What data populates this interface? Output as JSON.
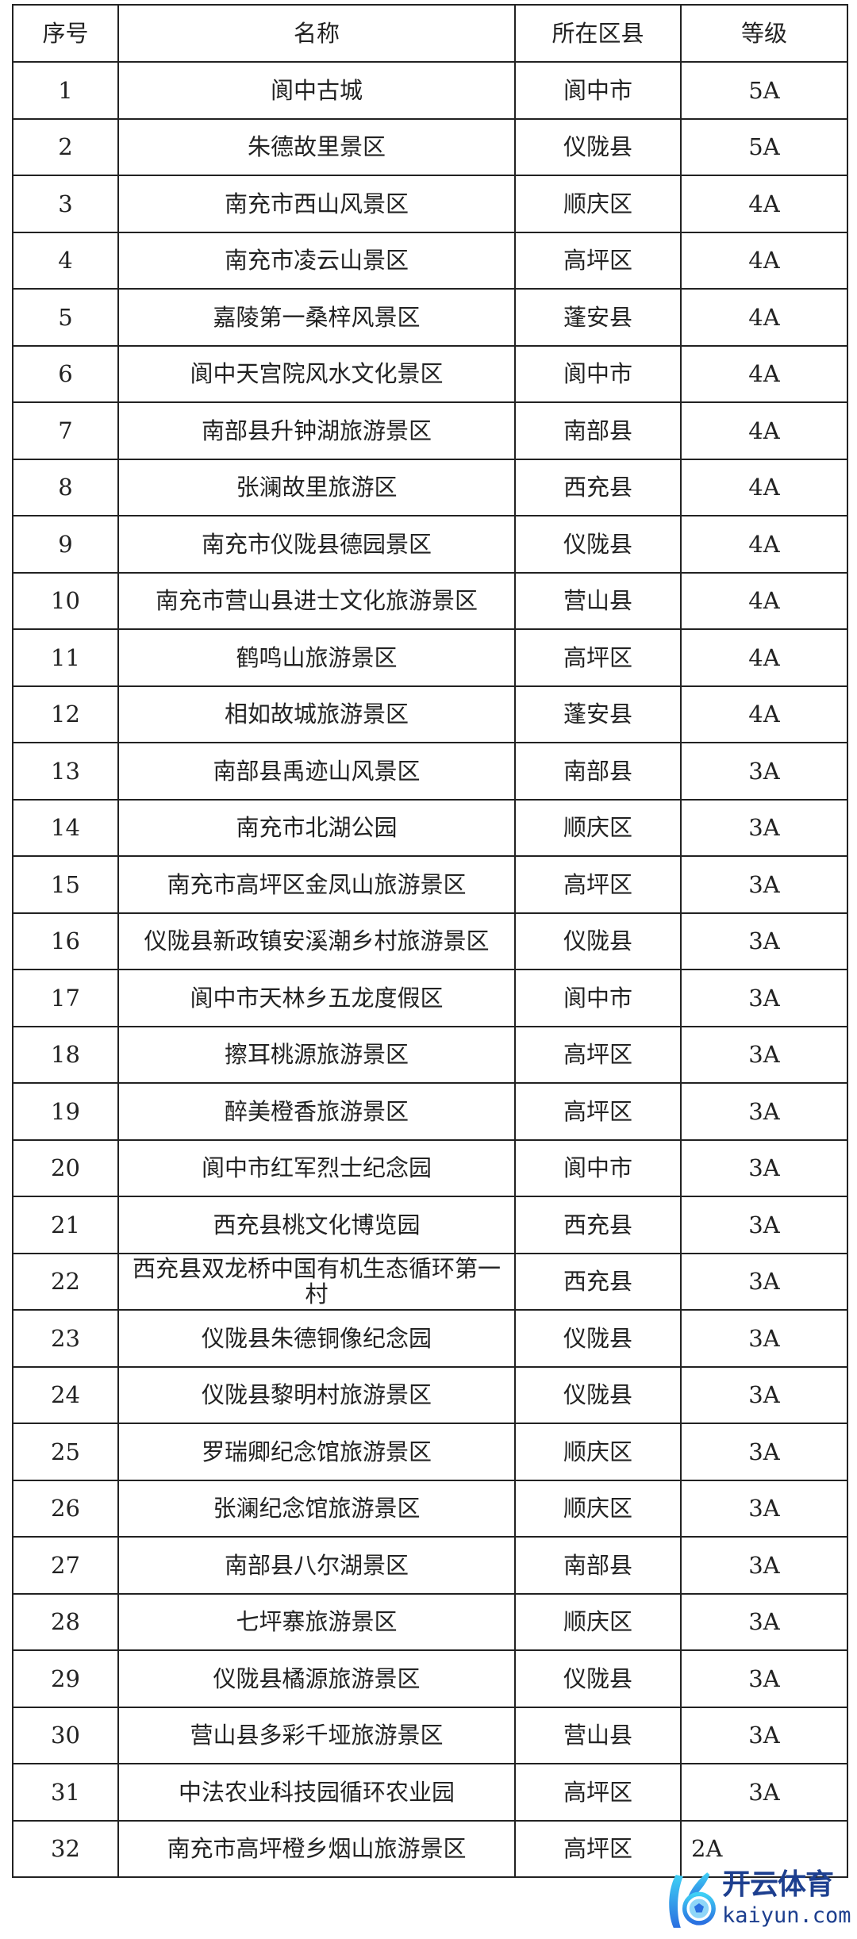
{
  "table": {
    "headers": [
      "序号",
      "名称",
      "所在区县",
      "等级"
    ],
    "rows": [
      [
        "1",
        "阆中古城",
        "阆中市",
        "5A"
      ],
      [
        "2",
        "朱德故里景区",
        "仪陇县",
        "5A"
      ],
      [
        "3",
        "南充市西山风景区",
        "顺庆区",
        "4A"
      ],
      [
        "4",
        "南充市凌云山景区",
        "高坪区",
        "4A"
      ],
      [
        "5",
        "嘉陵第一桑梓风景区",
        "蓬安县",
        "4A"
      ],
      [
        "6",
        "阆中天宫院风水文化景区",
        "阆中市",
        "4A"
      ],
      [
        "7",
        "南部县升钟湖旅游景区",
        "南部县",
        "4A"
      ],
      [
        "8",
        "张澜故里旅游区",
        "西充县",
        "4A"
      ],
      [
        "9",
        "南充市仪陇县德园景区",
        "仪陇县",
        "4A"
      ],
      [
        "10",
        "南充市营山县进士文化旅游景区",
        "营山县",
        "4A"
      ],
      [
        "11",
        "鹤鸣山旅游景区",
        "高坪区",
        "4A"
      ],
      [
        "12",
        "相如故城旅游景区",
        "蓬安县",
        "4A"
      ],
      [
        "13",
        "南部县禹迹山风景区",
        "南部县",
        "3A"
      ],
      [
        "14",
        "南充市北湖公园",
        "顺庆区",
        "3A"
      ],
      [
        "15",
        "南充市高坪区金凤山旅游景区",
        "高坪区",
        "3A"
      ],
      [
        "16",
        "仪陇县新政镇安溪潮乡村旅游景区",
        "仪陇县",
        "3A"
      ],
      [
        "17",
        "阆中市天林乡五龙度假区",
        "阆中市",
        "3A"
      ],
      [
        "18",
        "擦耳桃源旅游景区",
        "高坪区",
        "3A"
      ],
      [
        "19",
        "醉美橙香旅游景区",
        "高坪区",
        "3A"
      ],
      [
        "20",
        "阆中市红军烈士纪念园",
        "阆中市",
        "3A"
      ],
      [
        "21",
        "西充县桃文化博览园",
        "西充县",
        "3A"
      ],
      [
        "22",
        "西充县双龙桥中国有机生态循环第一村",
        "西充县",
        "3A"
      ],
      [
        "23",
        "仪陇县朱德铜像纪念园",
        "仪陇县",
        "3A"
      ],
      [
        "24",
        "仪陇县黎明村旅游景区",
        "仪陇县",
        "3A"
      ],
      [
        "25",
        "罗瑞卿纪念馆旅游景区",
        "顺庆区",
        "3A"
      ],
      [
        "26",
        "张澜纪念馆旅游景区",
        "顺庆区",
        "3A"
      ],
      [
        "27",
        "南部县八尔湖景区",
        "南部县",
        "3A"
      ],
      [
        "28",
        "七坪寨旅游景区",
        "顺庆区",
        "3A"
      ],
      [
        "29",
        "仪陇县橘源旅游景区",
        "仪陇县",
        "3A"
      ],
      [
        "30",
        "营山县多彩千垭旅游景区",
        "营山县",
        "3A"
      ],
      [
        "31",
        "中法农业科技园循环农业园",
        "高坪区",
        "3A"
      ],
      [
        "32",
        "南充市高坪橙乡烟山旅游景区",
        "高坪区",
        "2A"
      ]
    ]
  },
  "watermark": {
    "title": "开云体育",
    "url": "kaiyun.com",
    "color": "#1d3f8f",
    "accent": "#2fb6f0"
  }
}
